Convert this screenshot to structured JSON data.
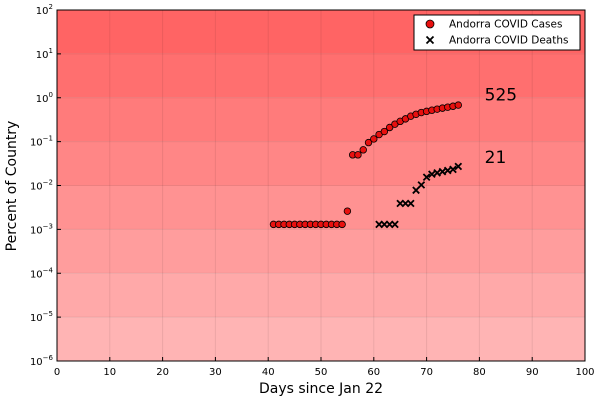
{
  "chart_data": {
    "type": "scatter",
    "title": "",
    "xlabel": "Days since Jan 22",
    "ylabel": "Percent of Country",
    "xlim": [
      0,
      100
    ],
    "ylim": [
      1e-06,
      100
    ],
    "yscale": "log",
    "xticks": [
      0,
      10,
      20,
      30,
      40,
      50,
      60,
      70,
      80,
      90,
      100
    ],
    "yticks_exp": [
      -6,
      -5,
      -4,
      -3,
      -2,
      -1,
      0,
      1,
      2
    ],
    "ytick_base": "10",
    "grid": true,
    "legend_position": "top-right",
    "background_gradient": [
      "#ff6464",
      "#ffb4b4"
    ],
    "series": [
      {
        "name": "Andorra COVID Cases",
        "marker": "circle",
        "color": "#e8100f",
        "points": [
          [
            41,
            0.0013
          ],
          [
            42,
            0.0013
          ],
          [
            43,
            0.0013
          ],
          [
            44,
            0.0013
          ],
          [
            45,
            0.0013
          ],
          [
            46,
            0.0013
          ],
          [
            47,
            0.0013
          ],
          [
            48,
            0.0013
          ],
          [
            49,
            0.0013
          ],
          [
            50,
            0.0013
          ],
          [
            51,
            0.0013
          ],
          [
            52,
            0.0013
          ],
          [
            53,
            0.0013
          ],
          [
            54,
            0.0013
          ],
          [
            55,
            0.0026
          ],
          [
            56,
            0.05
          ],
          [
            57,
            0.05
          ],
          [
            58,
            0.065
          ],
          [
            59,
            0.095
          ],
          [
            60,
            0.115
          ],
          [
            61,
            0.145
          ],
          [
            62,
            0.17
          ],
          [
            63,
            0.21
          ],
          [
            64,
            0.25
          ],
          [
            65,
            0.29
          ],
          [
            66,
            0.33
          ],
          [
            67,
            0.38
          ],
          [
            68,
            0.42
          ],
          [
            69,
            0.46
          ],
          [
            70,
            0.49
          ],
          [
            71,
            0.52
          ],
          [
            72,
            0.55
          ],
          [
            73,
            0.58
          ],
          [
            74,
            0.61
          ],
          [
            75,
            0.64
          ],
          [
            76,
            0.68
          ]
        ]
      },
      {
        "name": "Andorra COVID Deaths",
        "marker": "x",
        "color": "#000000",
        "points": [
          [
            61,
            0.0013
          ],
          [
            62,
            0.0013
          ],
          [
            63,
            0.0013
          ],
          [
            64,
            0.0013
          ],
          [
            65,
            0.0039
          ],
          [
            66,
            0.0039
          ],
          [
            67,
            0.0039
          ],
          [
            68,
            0.0078
          ],
          [
            69,
            0.0103
          ],
          [
            70,
            0.0155
          ],
          [
            71,
            0.0181
          ],
          [
            72,
            0.0194
          ],
          [
            73,
            0.0207
          ],
          [
            74,
            0.022
          ],
          [
            75,
            0.0233
          ],
          [
            76,
            0.0272
          ]
        ]
      }
    ],
    "annotations": [
      {
        "text": "525",
        "x": 81,
        "y": 1.2
      },
      {
        "text": "21",
        "x": 81,
        "y": 0.045
      }
    ]
  }
}
